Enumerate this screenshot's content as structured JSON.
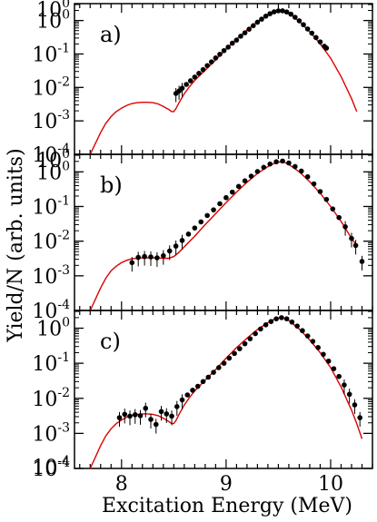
{
  "figure": {
    "ylabel": "Yield/N (arb. units)",
    "xlabel": "Excitation Energy (MeV)",
    "x_ticks": [
      "8",
      "9",
      "10"
    ],
    "y_tick_base": "10",
    "y_tick_exponents": [
      "0",
      "-1",
      "-2",
      "-3",
      "-4"
    ],
    "bottom_panel_extra_exponent": "-4",
    "colors": {
      "model": "#dd0000",
      "data": "#000000"
    }
  },
  "chart_data": [
    {
      "type": "scatter",
      "label": "a)",
      "x_range": [
        7.55,
        10.4
      ],
      "y_range": [
        0.0001,
        3.2
      ],
      "yscale": "log",
      "series": [
        {
          "points": [
            [
              8.52,
              0.0066
            ],
            [
              8.55,
              0.0078
            ],
            [
              8.58,
              0.0095
            ],
            [
              8.62,
              0.0123
            ],
            [
              8.66,
              0.0158
            ],
            [
              8.7,
              0.0204
            ],
            [
              8.74,
              0.0263
            ],
            [
              8.78,
              0.034
            ],
            [
              8.82,
              0.045
            ],
            [
              8.86,
              0.058
            ],
            [
              8.9,
              0.076
            ],
            [
              8.94,
              0.098
            ],
            [
              8.98,
              0.126
            ],
            [
              9.02,
              0.16
            ],
            [
              9.06,
              0.21
            ],
            [
              9.1,
              0.26
            ],
            [
              9.14,
              0.34
            ],
            [
              9.18,
              0.43
            ],
            [
              9.22,
              0.55
            ],
            [
              9.26,
              0.7
            ],
            [
              9.3,
              0.89
            ],
            [
              9.34,
              1.1
            ],
            [
              9.38,
              1.35
            ],
            [
              9.42,
              1.6
            ],
            [
              9.46,
              1.82
            ],
            [
              9.5,
              1.95
            ],
            [
              9.54,
              1.95
            ],
            [
              9.58,
              1.8
            ],
            [
              9.62,
              1.55
            ],
            [
              9.66,
              1.25
            ],
            [
              9.7,
              0.98
            ],
            [
              9.74,
              0.75
            ],
            [
              9.78,
              0.56
            ],
            [
              9.82,
              0.42
            ],
            [
              9.86,
              0.31
            ],
            [
              9.9,
              0.23
            ],
            [
              9.94,
              0.17
            ],
            [
              9.96,
              0.15
            ]
          ]
        }
      ],
      "model": [
        [
          7.7,
          0.0001
        ],
        [
          7.75,
          0.00021
        ],
        [
          7.8,
          0.00045
        ],
        [
          7.85,
          0.00085
        ],
        [
          7.9,
          0.00135
        ],
        [
          7.95,
          0.0019
        ],
        [
          8.0,
          0.0024
        ],
        [
          8.05,
          0.0029
        ],
        [
          8.1,
          0.0033
        ],
        [
          8.15,
          0.0035
        ],
        [
          8.2,
          0.0036
        ],
        [
          8.25,
          0.0036
        ],
        [
          8.3,
          0.0035
        ],
        [
          8.35,
          0.0032
        ],
        [
          8.4,
          0.0027
        ],
        [
          8.45,
          0.0022
        ],
        [
          8.48,
          0.0019
        ],
        [
          8.5,
          0.0019
        ],
        [
          8.52,
          0.0023
        ],
        [
          8.55,
          0.0035
        ],
        [
          8.6,
          0.0064
        ],
        [
          8.65,
          0.0106
        ],
        [
          8.7,
          0.0163
        ],
        [
          8.8,
          0.033
        ],
        [
          8.9,
          0.066
        ],
        [
          9.0,
          0.14
        ],
        [
          9.1,
          0.28
        ],
        [
          9.2,
          0.52
        ],
        [
          9.3,
          0.92
        ],
        [
          9.4,
          1.45
        ],
        [
          9.45,
          1.75
        ],
        [
          9.5,
          1.95
        ],
        [
          9.55,
          1.95
        ],
        [
          9.6,
          1.65
        ],
        [
          9.7,
          0.95
        ],
        [
          9.8,
          0.46
        ],
        [
          9.9,
          0.2
        ],
        [
          10.0,
          0.075
        ],
        [
          10.1,
          0.021
        ],
        [
          10.2,
          0.0046
        ],
        [
          10.25,
          0.0019
        ]
      ]
    },
    {
      "type": "scatter",
      "label": "b)",
      "x_range": [
        7.55,
        10.4
      ],
      "y_range": [
        0.0001,
        3.2
      ],
      "yscale": "log",
      "series": [
        {
          "points": [
            [
              8.1,
              0.0024
            ],
            [
              8.16,
              0.0034
            ],
            [
              8.22,
              0.0036
            ],
            [
              8.28,
              0.0035
            ],
            [
              8.34,
              0.0033
            ],
            [
              8.4,
              0.0038
            ],
            [
              8.46,
              0.0052
            ],
            [
              8.52,
              0.0072
            ],
            [
              8.58,
              0.0105
            ],
            [
              8.64,
              0.016
            ],
            [
              8.7,
              0.024
            ],
            [
              8.76,
              0.036
            ],
            [
              8.82,
              0.055
            ],
            [
              8.88,
              0.08
            ],
            [
              8.94,
              0.12
            ],
            [
              9.0,
              0.18
            ],
            [
              9.06,
              0.26
            ],
            [
              9.12,
              0.38
            ],
            [
              9.18,
              0.55
            ],
            [
              9.24,
              0.75
            ],
            [
              9.3,
              1.02
            ],
            [
              9.36,
              1.35
            ],
            [
              9.42,
              1.68
            ],
            [
              9.48,
              1.95
            ],
            [
              9.54,
              2.05
            ],
            [
              9.6,
              1.8
            ],
            [
              9.66,
              1.42
            ],
            [
              9.72,
              1.05
            ],
            [
              9.78,
              0.72
            ],
            [
              9.84,
              0.45
            ],
            [
              9.9,
              0.27
            ],
            [
              9.96,
              0.16
            ],
            [
              10.02,
              0.085
            ],
            [
              10.08,
              0.048
            ],
            [
              10.14,
              0.026
            ],
            [
              10.2,
              0.012
            ],
            [
              10.24,
              0.0075
            ],
            [
              10.3,
              0.0026
            ]
          ]
        }
      ],
      "model": [
        [
          7.7,
          0.0001
        ],
        [
          7.75,
          0.00021
        ],
        [
          7.8,
          0.00045
        ],
        [
          7.85,
          0.00085
        ],
        [
          7.9,
          0.0014
        ],
        [
          7.95,
          0.0019
        ],
        [
          8.0,
          0.0024
        ],
        [
          8.05,
          0.0028
        ],
        [
          8.1,
          0.0031
        ],
        [
          8.15,
          0.0032
        ],
        [
          8.2,
          0.0033
        ],
        [
          8.3,
          0.0033
        ],
        [
          8.4,
          0.0032
        ],
        [
          8.45,
          0.0032
        ],
        [
          8.5,
          0.0036
        ],
        [
          8.55,
          0.0048
        ],
        [
          8.6,
          0.0068
        ],
        [
          8.65,
          0.0098
        ],
        [
          8.7,
          0.014
        ],
        [
          8.8,
          0.03
        ],
        [
          8.9,
          0.062
        ],
        [
          9.0,
          0.13
        ],
        [
          9.1,
          0.26
        ],
        [
          9.2,
          0.5
        ],
        [
          9.3,
          0.9
        ],
        [
          9.4,
          1.42
        ],
        [
          9.45,
          1.7
        ],
        [
          9.5,
          1.92
        ],
        [
          9.55,
          1.92
        ],
        [
          9.6,
          1.65
        ],
        [
          9.7,
          1.0
        ],
        [
          9.8,
          0.52
        ],
        [
          9.9,
          0.24
        ],
        [
          10.0,
          0.1
        ],
        [
          10.1,
          0.037
        ],
        [
          10.2,
          0.012
        ],
        [
          10.25,
          0.0075
        ]
      ]
    },
    {
      "type": "scatter",
      "label": "c)",
      "x_range": [
        7.55,
        10.4
      ],
      "y_range": [
        0.0001,
        3.2
      ],
      "yscale": "log",
      "series": [
        {
          "points": [
            [
              7.98,
              0.0028
            ],
            [
              8.03,
              0.0035
            ],
            [
              8.08,
              0.0031
            ],
            [
              8.13,
              0.0034
            ],
            [
              8.18,
              0.0032
            ],
            [
              8.23,
              0.0052
            ],
            [
              8.28,
              0.0025
            ],
            [
              8.33,
              0.0018
            ],
            [
              8.38,
              0.0042
            ],
            [
              8.43,
              0.0036
            ],
            [
              8.48,
              0.0031
            ],
            [
              8.53,
              0.0058
            ],
            [
              8.58,
              0.009
            ],
            [
              8.63,
              0.0125
            ],
            [
              8.68,
              0.017
            ],
            [
              8.73,
              0.022
            ],
            [
              8.78,
              0.03
            ],
            [
              8.83,
              0.04
            ],
            [
              8.88,
              0.055
            ],
            [
              8.93,
              0.075
            ],
            [
              8.98,
              0.1
            ],
            [
              9.03,
              0.14
            ],
            [
              9.08,
              0.19
            ],
            [
              9.13,
              0.26
            ],
            [
              9.18,
              0.36
            ],
            [
              9.23,
              0.5
            ],
            [
              9.28,
              0.7
            ],
            [
              9.33,
              0.95
            ],
            [
              9.38,
              1.25
            ],
            [
              9.43,
              1.55
            ],
            [
              9.48,
              1.85
            ],
            [
              9.53,
              2.0
            ],
            [
              9.58,
              1.85
            ],
            [
              9.63,
              1.5
            ],
            [
              9.68,
              1.15
            ],
            [
              9.73,
              0.85
            ],
            [
              9.78,
              0.6
            ],
            [
              9.83,
              0.42
            ],
            [
              9.88,
              0.28
            ],
            [
              9.93,
              0.18
            ],
            [
              9.98,
              0.115
            ],
            [
              10.03,
              0.07
            ],
            [
              10.08,
              0.042
            ],
            [
              10.13,
              0.024
            ],
            [
              10.18,
              0.013
            ],
            [
              10.23,
              0.0065
            ],
            [
              10.28,
              0.0028
            ]
          ]
        }
      ],
      "model": [
        [
          7.7,
          0.0001
        ],
        [
          7.75,
          0.00021
        ],
        [
          7.8,
          0.00045
        ],
        [
          7.85,
          0.00085
        ],
        [
          7.9,
          0.00135
        ],
        [
          7.95,
          0.0019
        ],
        [
          8.0,
          0.0024
        ],
        [
          8.05,
          0.0029
        ],
        [
          8.1,
          0.0033
        ],
        [
          8.15,
          0.0035
        ],
        [
          8.2,
          0.0036
        ],
        [
          8.25,
          0.0036
        ],
        [
          8.3,
          0.0035
        ],
        [
          8.35,
          0.0032
        ],
        [
          8.4,
          0.0027
        ],
        [
          8.45,
          0.0022
        ],
        [
          8.48,
          0.0019
        ],
        [
          8.5,
          0.0019
        ],
        [
          8.52,
          0.0023
        ],
        [
          8.55,
          0.0035
        ],
        [
          8.6,
          0.0064
        ],
        [
          8.65,
          0.0106
        ],
        [
          8.7,
          0.0163
        ],
        [
          8.8,
          0.033
        ],
        [
          8.9,
          0.066
        ],
        [
          9.0,
          0.14
        ],
        [
          9.1,
          0.28
        ],
        [
          9.2,
          0.52
        ],
        [
          9.3,
          0.92
        ],
        [
          9.4,
          1.45
        ],
        [
          9.45,
          1.75
        ],
        [
          9.5,
          1.95
        ],
        [
          9.55,
          1.95
        ],
        [
          9.6,
          1.65
        ],
        [
          9.7,
          0.95
        ],
        [
          9.8,
          0.46
        ],
        [
          9.9,
          0.2
        ],
        [
          10.0,
          0.075
        ],
        [
          10.1,
          0.021
        ],
        [
          10.2,
          0.0046
        ],
        [
          10.25,
          0.0019
        ],
        [
          10.3,
          0.0007
        ]
      ]
    }
  ]
}
